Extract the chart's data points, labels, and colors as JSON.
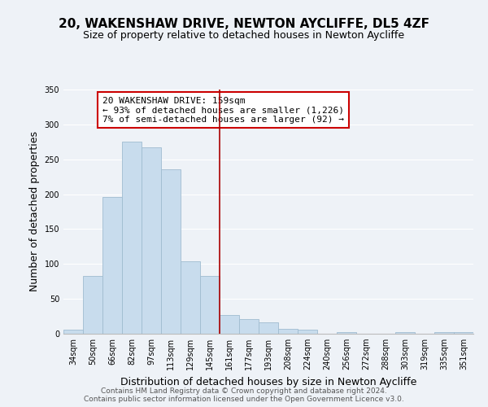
{
  "title": "20, WAKENSHAW DRIVE, NEWTON AYCLIFFE, DL5 4ZF",
  "subtitle": "Size of property relative to detached houses in Newton Aycliffe",
  "xlabel": "Distribution of detached houses by size in Newton Aycliffe",
  "ylabel": "Number of detached properties",
  "bar_color": "#c8dced",
  "bar_edge_color": "#a0bcd0",
  "categories": [
    "34sqm",
    "50sqm",
    "66sqm",
    "82sqm",
    "97sqm",
    "113sqm",
    "129sqm",
    "145sqm",
    "161sqm",
    "177sqm",
    "193sqm",
    "208sqm",
    "224sqm",
    "240sqm",
    "256sqm",
    "272sqm",
    "288sqm",
    "303sqm",
    "319sqm",
    "335sqm",
    "351sqm"
  ],
  "values": [
    6,
    83,
    196,
    275,
    267,
    236,
    104,
    83,
    27,
    21,
    16,
    7,
    6,
    0,
    2,
    0,
    0,
    2,
    0,
    2,
    2
  ],
  "vline_idx": 8,
  "vline_color": "#aa0000",
  "annotation_title": "20 WAKENSHAW DRIVE: 159sqm",
  "annotation_line1": "← 93% of detached houses are smaller (1,226)",
  "annotation_line2": "7% of semi-detached houses are larger (92) →",
  "annotation_box_color": "#ffffff",
  "annotation_box_edge": "#cc0000",
  "ylim": [
    0,
    350
  ],
  "yticks": [
    0,
    50,
    100,
    150,
    200,
    250,
    300,
    350
  ],
  "footer_line1": "Contains HM Land Registry data © Crown copyright and database right 2024.",
  "footer_line2": "Contains public sector information licensed under the Open Government Licence v3.0.",
  "bg_color": "#eef2f7",
  "grid_color": "#ffffff",
  "title_fontsize": 11,
  "subtitle_fontsize": 9,
  "axis_label_fontsize": 9,
  "tick_fontsize": 7,
  "annotation_fontsize": 8,
  "footer_fontsize": 6.5
}
